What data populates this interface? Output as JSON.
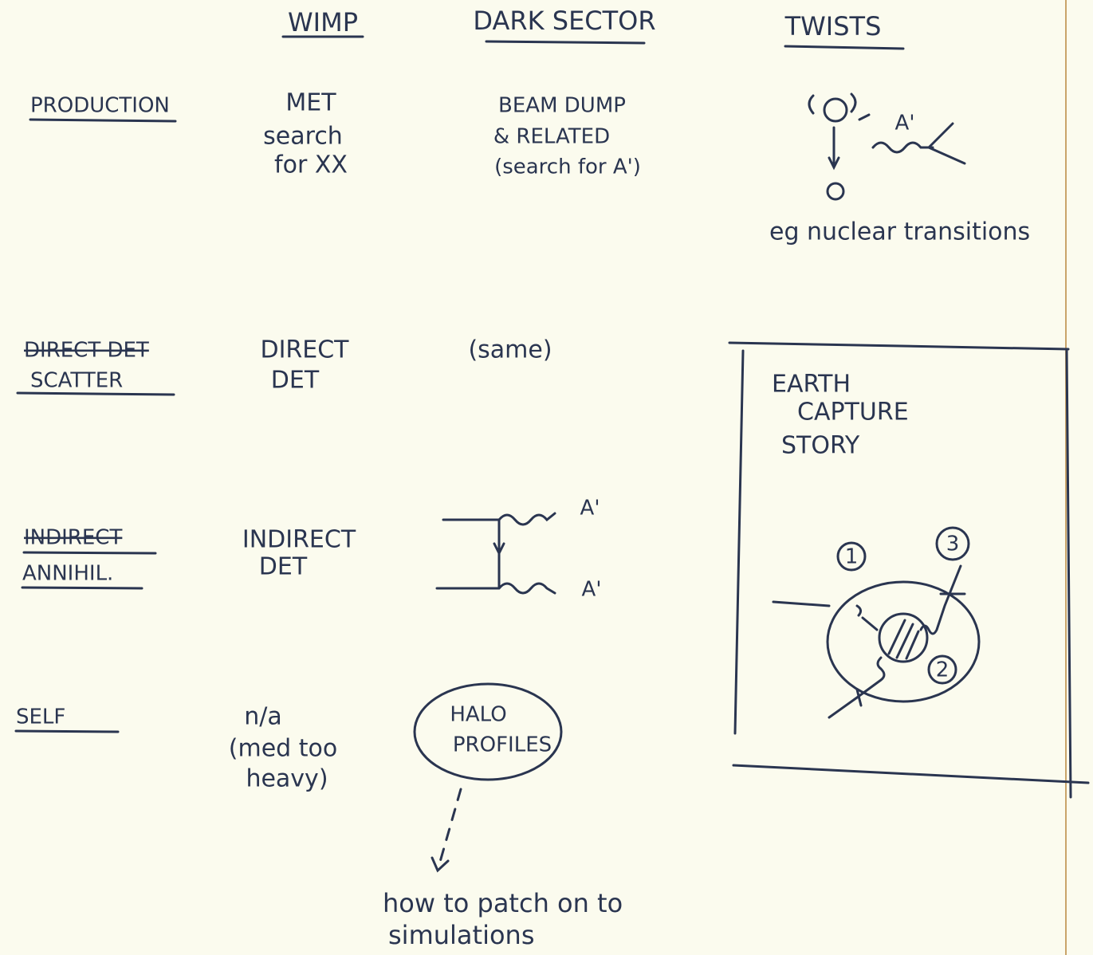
{
  "columns": [
    "WIMP",
    "DARK SECTOR",
    "TWISTS"
  ],
  "rows": [
    {
      "label": "PRODUCTION",
      "wimp": [
        "MET",
        "search",
        "for XX"
      ],
      "dark_sector": [
        "BEAM DUMP",
        "& RELATED",
        "(search for A')"
      ]
    },
    {
      "struck": "DIRECT DET",
      "label": "SCATTER",
      "wimp": [
        "DIRECT",
        "DET"
      ],
      "dark_sector": [
        "(same)"
      ]
    },
    {
      "struck": "INDIRECT",
      "label": "ANNIHIL.",
      "wimp": [
        "INDIRECT",
        "DET"
      ],
      "dark_sector": [
        "A'",
        "A'"
      ]
    },
    {
      "label": "SELF",
      "wimp": [
        "n/a",
        "(med too",
        "heavy)"
      ],
      "dark_sector": [
        "HALO",
        "PROFILES"
      ]
    }
  ],
  "twists": {
    "diagram_label": "A'",
    "note": "eg nuclear transitions"
  },
  "box": {
    "title": [
      "EARTH",
      "CAPTURE",
      "STORY"
    ],
    "markers": [
      "1",
      "2",
      "3"
    ]
  },
  "footnote": [
    "how to patch on to",
    "simulations"
  ]
}
